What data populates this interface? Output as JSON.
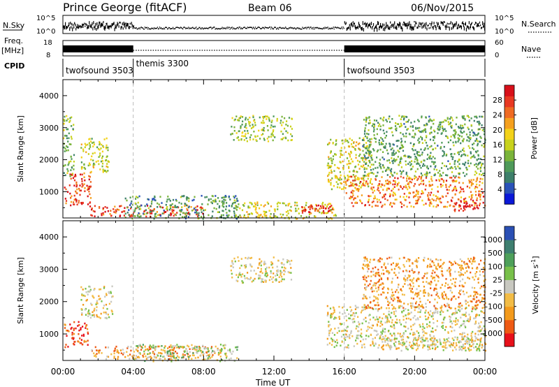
{
  "header": {
    "station": "Prince George (fitACF)",
    "beam": "Beam 06",
    "date": "06/Nov/2015"
  },
  "summary": {
    "nsky_label": "N.Sky",
    "nsearch_label": "N.Search",
    "freq_label_line1": "Freq.",
    "freq_label_line2": "[MHz]",
    "nave_label": "Nave",
    "cpid_label": "CPID",
    "noise_ticks_left": [
      "10^5",
      "10^0"
    ],
    "noise_ticks_right": [
      "10^5",
      "10^0"
    ],
    "freq_ticks": [
      "18",
      "8"
    ],
    "nave_ticks": [
      "60",
      "0"
    ]
  },
  "cpid_segments": [
    {
      "name": "twofsound 3503",
      "start_h": 0,
      "end_h": 4
    },
    {
      "name": "themis 3300",
      "start_h": 4,
      "end_h": 16
    },
    {
      "name": "twofsound 3503",
      "start_h": 16,
      "end_h": 24
    }
  ],
  "chart_data": [
    {
      "type": "heatmap",
      "panel": "power",
      "ylabel": "Slant Range [km]",
      "xlabel": "",
      "ylim": [
        180,
        4500
      ],
      "yticks": [
        1000,
        2000,
        3000,
        4000
      ],
      "colorbar_label": "Power [dB]",
      "colorbar_ticks": [
        "4",
        "8",
        "12",
        "16",
        "20",
        "24",
        "28"
      ],
      "colorbar_colors": [
        "#0a18d8",
        "#2a52b8",
        "#3d7f6a",
        "#4f9a5a",
        "#7ab43a",
        "#c8d21c",
        "#f3d21a",
        "#f5a01e",
        "#ef6a22",
        "#e83822",
        "#d8101a"
      ],
      "scatter_regions": [
        {
          "t0": 0.05,
          "t1": 1.6,
          "r0": 600,
          "r1": 1600,
          "level": 0.85
        },
        {
          "t0": 0.0,
          "t1": 0.6,
          "r0": 1500,
          "r1": 3400,
          "level": 0.4
        },
        {
          "t0": 1.0,
          "t1": 2.6,
          "r0": 1600,
          "r1": 2700,
          "level": 0.5
        },
        {
          "t0": 1.5,
          "t1": 8.0,
          "r0": 250,
          "r1": 600,
          "level": 0.85
        },
        {
          "t0": 3.5,
          "t1": 10.0,
          "r0": 180,
          "r1": 900,
          "level": 0.3
        },
        {
          "t0": 10.0,
          "t1": 15.5,
          "r0": 180,
          "r1": 700,
          "level": 0.55
        },
        {
          "t0": 13.5,
          "t1": 15.4,
          "r0": 350,
          "r1": 600,
          "level": 0.9
        },
        {
          "t0": 9.5,
          "t1": 13.0,
          "r0": 2600,
          "r1": 3400,
          "level": 0.45
        },
        {
          "t0": 15.0,
          "t1": 17.5,
          "r0": 1100,
          "r1": 2700,
          "level": 0.55
        },
        {
          "t0": 16.0,
          "t1": 24.0,
          "r0": 550,
          "r1": 1500,
          "level": 0.75
        },
        {
          "t0": 17.0,
          "t1": 24.0,
          "r0": 1500,
          "r1": 3400,
          "level": 0.35
        },
        {
          "t0": 22.0,
          "t1": 23.6,
          "r0": 400,
          "r1": 800,
          "level": 0.95
        }
      ]
    },
    {
      "type": "heatmap",
      "panel": "velocity",
      "ylabel": "Slant Range [km]",
      "xlabel": "Time UT",
      "ylim": [
        180,
        4500
      ],
      "yticks": [
        1000,
        2000,
        3000,
        4000
      ],
      "xticks": [
        "00:00",
        "04:00",
        "08:00",
        "12:00",
        "16:00",
        "20:00",
        "00:00"
      ],
      "colorbar_label": "Velocity [m s^-1]",
      "colorbar_ticks": [
        "-1000",
        "-500",
        "-100",
        "-25",
        "25",
        "100",
        "500",
        "1000"
      ],
      "colorbar_colors": [
        "#e8101a",
        "#ee5a14",
        "#f39a1c",
        "#f2bc46",
        "#c8c8c0",
        "#78c04a",
        "#4ea05a",
        "#3e7f70",
        "#2a4fb4"
      ],
      "scatter_regions": [
        {
          "t0": 0.05,
          "t1": 1.4,
          "r0": 600,
          "r1": 1400,
          "level": 0.1
        },
        {
          "t0": 1.0,
          "t1": 2.8,
          "r0": 1500,
          "r1": 2500,
          "level": 0.47
        },
        {
          "t0": 1.5,
          "t1": 9.0,
          "r0": 250,
          "r1": 650,
          "level": 0.3
        },
        {
          "t0": 4.0,
          "t1": 10.0,
          "r0": 180,
          "r1": 700,
          "level": 0.55
        },
        {
          "t0": 9.5,
          "t1": 13.0,
          "r0": 2600,
          "r1": 3400,
          "level": 0.47
        },
        {
          "t0": 15.0,
          "t1": 24.0,
          "r0": 600,
          "r1": 1900,
          "level": 0.47
        },
        {
          "t0": 17.0,
          "t1": 24.0,
          "r0": 1800,
          "r1": 3400,
          "level": 0.3
        },
        {
          "t0": 18.0,
          "t1": 24.0,
          "r0": 500,
          "r1": 900,
          "level": 0.45
        }
      ]
    }
  ],
  "x_axis": {
    "range_hours": [
      0,
      24
    ],
    "tick_labels": [
      "00:00",
      "04:00",
      "08:00",
      "12:00",
      "16:00",
      "20:00",
      "00:00"
    ],
    "label": "Time UT"
  },
  "colors": {
    "background": "#ffffff",
    "axis": "#000000",
    "dashed_marker": "#bbbbbb"
  }
}
